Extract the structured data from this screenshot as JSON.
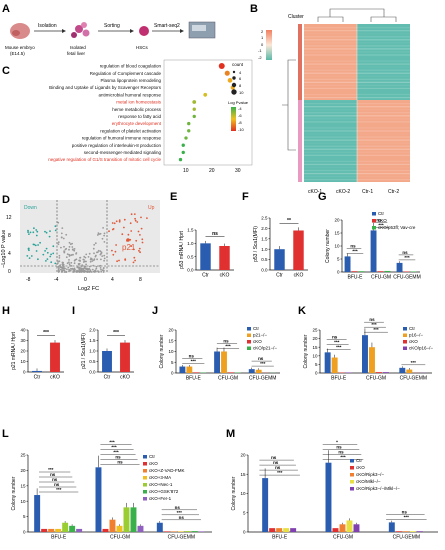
{
  "panels": {
    "A": {
      "letter": "A",
      "steps": [
        "Isolation",
        "Sorting",
        "Smart-seq2"
      ],
      "nodes": [
        "Mouse embryo",
        "(E14.5)",
        "Isolated",
        "fetal liver",
        "HSCs"
      ]
    },
    "B": {
      "letter": "B",
      "legend_title": "Cluster",
      "scale_ticks": [
        "2",
        "1",
        "0",
        "-1",
        "-2"
      ],
      "columns": [
        "cKO-1",
        "cKO-2",
        "Ctr-1",
        "Ctr-2"
      ],
      "colors": {
        "high": "#f08060",
        "mid": "#fbe8d8",
        "low": "#5ab8a8"
      }
    },
    "C": {
      "letter": "C",
      "terms": [
        {
          "label": "regulation of blood coagulation",
          "x": 24,
          "size": 10,
          "logp": -10,
          "red": false
        },
        {
          "label": "Regulation of Complement cascade",
          "x": 26,
          "size": 8,
          "logp": -8,
          "red": false
        },
        {
          "label": "Plasma lipoprotein remodeling",
          "x": 27,
          "size": 7,
          "logp": -7,
          "red": false
        },
        {
          "label": "Binding and Uptake of Ligands by Scavenger Receptors",
          "x": 28,
          "size": 6,
          "logp": -7,
          "red": false
        },
        {
          "label": "antimicrobial humoral response",
          "x": 18,
          "size": 5,
          "logp": -6,
          "red": false
        },
        {
          "label": "metal ion homeostasis",
          "x": 14,
          "size": 5,
          "logp": -5,
          "red": true
        },
        {
          "label": "heme metabolic process",
          "x": 14,
          "size": 4,
          "logp": -5,
          "red": false
        },
        {
          "label": "response to fatty acid",
          "x": 14,
          "size": 4,
          "logp": -4,
          "red": false
        },
        {
          "label": "erythrocyte development",
          "x": 12,
          "size": 4,
          "logp": -4,
          "red": true
        },
        {
          "label": "regulation of platelet activation",
          "x": 12,
          "size": 4,
          "logp": -4,
          "red": false
        },
        {
          "label": "regulation of humoral immune response",
          "x": 11,
          "size": 4,
          "logp": -4,
          "red": false
        },
        {
          "label": "positive regulation of interleukin-8 production",
          "x": 10,
          "size": 4,
          "logp": -3,
          "red": false
        },
        {
          "label": "second-messenger-mediated signaling",
          "x": 10,
          "size": 4,
          "logp": -3,
          "red": false
        },
        {
          "label": "negative regulation of G1/S transition of mitotic cell cycle",
          "x": 9,
          "size": 4,
          "logp": -3,
          "red": true
        }
      ],
      "x_ticks": [
        "10",
        "20",
        "30"
      ],
      "size_legend_title": "count",
      "size_legend": [
        "4",
        "6",
        "8",
        "10"
      ],
      "color_legend_title": "Log Pvalue",
      "color_legend": [
        "-4",
        "-6",
        "-8",
        "-10"
      ]
    },
    "D": {
      "letter": "D",
      "title_down": "Down",
      "title_up": "Up",
      "xlabel": "Log2 FC",
      "ylabel": "−Log10 P value",
      "y_ticks": [
        "0",
        "4",
        "8",
        "12"
      ],
      "x_ticks": [
        "-8",
        "-4",
        "0",
        "4",
        "8"
      ],
      "highlight": "p21"
    },
    "E": {
      "letter": "E",
      "ylabel": "p53 mRNA / Hprt",
      "categories": [
        "Ctr",
        "cKO"
      ],
      "values": [
        1.0,
        0.9
      ],
      "sig": "ns",
      "y_ticks": [
        "0.0",
        "0.5",
        "1.0",
        "1.5"
      ]
    },
    "F": {
      "letter": "F",
      "ylabel": "p53 / Sca1(MFI)",
      "categories": [
        "Ctr",
        "cKO"
      ],
      "values": [
        1.0,
        1.9
      ],
      "sig": "**",
      "y_ticks": [
        "0.0",
        "0.5",
        "1.0",
        "1.5",
        "2.0",
        "2.5"
      ]
    },
    "G": {
      "letter": "G",
      "ylabel": "Colony number",
      "categories": [
        "BFU-E",
        "CFU-GM",
        "CFU-GEMM"
      ],
      "series": [
        {
          "name": "Ctr",
          "color": "#2a5db0",
          "values": [
            6,
            16,
            3.5
          ]
        },
        {
          "name": "cKO",
          "color": "#e03030",
          "values": [
            0.3,
            0.3,
            0.2
          ]
        },
        {
          "name": "cKO/p53fl; Vav-cre",
          "color": "#3ab04a",
          "values": [
            0.3,
            0.4,
            0.2
          ]
        }
      ],
      "sig": [
        "***",
        "ns",
        "***",
        "ns",
        "***",
        "ns"
      ],
      "y_ticks": [
        "0",
        "5",
        "10",
        "15",
        "20"
      ]
    },
    "H": {
      "letter": "H",
      "ylabel": "p21 mRNA / Hprt",
      "categories": [
        "Ctr",
        "cKO"
      ],
      "values": [
        1,
        28
      ],
      "sig": "***",
      "y_ticks": [
        "0",
        "10",
        "20",
        "30",
        "40"
      ]
    },
    "I": {
      "letter": "I",
      "ylabel": "p21 / Sca1(MFI)",
      "categories": [
        "Ctr",
        "cKO"
      ],
      "values": [
        1.0,
        1.4
      ],
      "sig": "***",
      "y_ticks": [
        "0.0",
        "0.5",
        "1.0",
        "1.5",
        "2.0"
      ]
    },
    "J": {
      "letter": "J",
      "ylabel": "Colony number",
      "categories": [
        "BFU-E",
        "CFU-GM",
        "CFU-GEMM"
      ],
      "series": [
        {
          "name": "Ctr",
          "color": "#2a5db0",
          "values": [
            3,
            10,
            1.8
          ]
        },
        {
          "name": "p21−/−",
          "color": "#f0a020",
          "values": [
            3,
            10,
            1.5
          ]
        },
        {
          "name": "cKO",
          "color": "#e03030",
          "values": [
            0.3,
            0.3,
            0.1
          ]
        },
        {
          "name": "cKO/p21−/−",
          "color": "#3ab04a",
          "values": [
            0.2,
            0.2,
            0.1
          ]
        }
      ],
      "sig": [
        "***",
        "ns",
        "***",
        "ns",
        "***",
        "ns"
      ],
      "y_ticks": [
        "0",
        "5",
        "10",
        "15",
        "20"
      ]
    },
    "K": {
      "letter": "K",
      "ylabel": "Colony number",
      "categories": [
        "BFU-E",
        "CFU-GM",
        "CFU-GEMM"
      ],
      "series": [
        {
          "name": "Ctr",
          "color": "#2a5db0",
          "values": [
            12,
            22,
            3
          ]
        },
        {
          "name": "p16−/−",
          "color": "#f0a020",
          "values": [
            9,
            15,
            2
          ]
        },
        {
          "name": "cKO",
          "color": "#e03030",
          "values": [
            0.3,
            0.5,
            0.1
          ]
        },
        {
          "name": "cKO/p16−/−",
          "color": "#8040b0",
          "values": [
            0.3,
            0.5,
            0.1
          ]
        }
      ],
      "sig": [
        "***",
        "***",
        "ns",
        "***",
        "***",
        "ns",
        "***"
      ],
      "y_ticks": [
        "0",
        "5",
        "10",
        "15",
        "20",
        "25"
      ]
    },
    "L": {
      "letter": "L",
      "ylabel": "Colony number",
      "categories": [
        "BFU-E",
        "CFU-GM",
        "CFU-GEMM"
      ],
      "series": [
        {
          "name": "Ctr",
          "color": "#2a5db0",
          "values": [
            12,
            21,
            3
          ]
        },
        {
          "name": "cKO",
          "color": "#e03030",
          "values": [
            1,
            1,
            0.2
          ]
        },
        {
          "name": "cKO+Z-VAD-FMK",
          "color": "#f08030",
          "values": [
            1,
            4,
            0.2
          ]
        },
        {
          "name": "cKO+3-MA",
          "color": "#f0c020",
          "values": [
            1,
            2,
            0.2
          ]
        },
        {
          "name": "cKO+Nec-1",
          "color": "#9acd32",
          "values": [
            3,
            8,
            0.3
          ]
        },
        {
          "name": "cKO+GSK'872",
          "color": "#3ab04a",
          "values": [
            2,
            8,
            0.3
          ]
        },
        {
          "name": "cKO+Fer-1",
          "color": "#9060c0",
          "values": [
            1,
            2,
            0.2
          ]
        }
      ],
      "sig": [
        "***",
        "ns",
        "ns",
        "ns",
        "***",
        "ns",
        "ns",
        "***",
        "***",
        "***",
        "ns",
        "***",
        "ns"
      ],
      "y_ticks": [
        "0",
        "5",
        "10",
        "15",
        "20",
        "25"
      ]
    },
    "M": {
      "letter": "M",
      "ylabel": "Colony number",
      "categories": [
        "BFU-E",
        "CFU-GM",
        "CFU-GEMM"
      ],
      "series": [
        {
          "name": "Ctr",
          "color": "#2a5db0",
          "values": [
            14,
            18,
            2.5
          ]
        },
        {
          "name": "cKO",
          "color": "#e03030",
          "values": [
            1,
            1,
            0.2
          ]
        },
        {
          "name": "cKO/Ripk3−/−",
          "color": "#f08030",
          "values": [
            1,
            2,
            0.2
          ]
        },
        {
          "name": "cKO/Mlkl−/−",
          "color": "#e8e040",
          "values": [
            1,
            3,
            0.2
          ]
        },
        {
          "name": "cKO/Ripk3−/−/Mlkl−/−",
          "color": "#8040b0",
          "values": [
            1,
            2,
            0.2
          ]
        }
      ],
      "sig": [
        "***",
        "ns",
        "ns",
        "ns",
        "***",
        "ns",
        "ns",
        "*",
        "***",
        "ns"
      ],
      "y_ticks": [
        "0",
        "5",
        "10",
        "15",
        "20"
      ]
    }
  }
}
